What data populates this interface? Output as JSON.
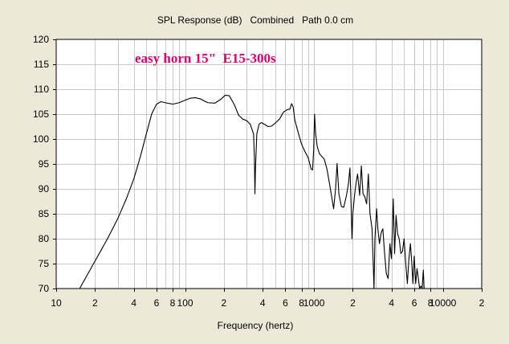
{
  "chart_data": {
    "type": "line",
    "title": "SPL Response (dB)   Combined   Path 0.0 cm",
    "xlabel": "Frequency (hertz)",
    "ylabel": "",
    "x_scale": "log",
    "xlim": [
      10,
      20000
    ],
    "ylim": [
      70,
      120
    ],
    "grid": true,
    "annotation": "easy horn 15\"  E15-300s",
    "colors": {
      "background": "#ece9d8",
      "plot_area": "#ffffff",
      "grid": "#c8c8c8",
      "line": "#000000",
      "annotation": "#e0006e"
    },
    "x_ticks": [
      {
        "value": 10,
        "label": "10"
      },
      {
        "value": 20,
        "label": "2"
      },
      {
        "value": 40,
        "label": "4"
      },
      {
        "value": 60,
        "label": "6"
      },
      {
        "value": 80,
        "label": "8"
      },
      {
        "value": 100,
        "label": "100"
      },
      {
        "value": 200,
        "label": "2"
      },
      {
        "value": 400,
        "label": "4"
      },
      {
        "value": 600,
        "label": "6"
      },
      {
        "value": 800,
        "label": "8"
      },
      {
        "value": 1000,
        "label": "1000"
      },
      {
        "value": 2000,
        "label": "2"
      },
      {
        "value": 4000,
        "label": "4"
      },
      {
        "value": 6000,
        "label": "6"
      },
      {
        "value": 8000,
        "label": "8"
      },
      {
        "value": 10000,
        "label": "10000"
      },
      {
        "value": 20000,
        "label": "2"
      }
    ],
    "y_ticks": [
      {
        "value": 70,
        "label": "70"
      },
      {
        "value": 75,
        "label": "75"
      },
      {
        "value": 80,
        "label": "80"
      },
      {
        "value": 85,
        "label": "85"
      },
      {
        "value": 90,
        "label": "90"
      },
      {
        "value": 95,
        "label": "95"
      },
      {
        "value": 100,
        "label": "100"
      },
      {
        "value": 105,
        "label": "105"
      },
      {
        "value": 110,
        "label": "110"
      },
      {
        "value": 115,
        "label": "115"
      },
      {
        "value": 120,
        "label": "120"
      }
    ],
    "series": [
      {
        "points": [
          [
            15.2,
            70
          ],
          [
            20,
            75.5
          ],
          [
            25,
            80
          ],
          [
            30,
            84
          ],
          [
            35,
            88
          ],
          [
            40,
            92
          ],
          [
            45,
            96.5
          ],
          [
            50,
            101
          ],
          [
            55,
            105
          ],
          [
            60,
            107
          ],
          [
            65,
            107.5
          ],
          [
            70,
            107.3
          ],
          [
            80,
            107
          ],
          [
            90,
            107.3
          ],
          [
            100,
            107.8
          ],
          [
            110,
            108.2
          ],
          [
            120,
            108.3
          ],
          [
            130,
            108.1
          ],
          [
            150,
            107.3
          ],
          [
            170,
            107.2
          ],
          [
            190,
            108
          ],
          [
            205,
            108.8
          ],
          [
            220,
            108.7
          ],
          [
            240,
            107
          ],
          [
            260,
            104.8
          ],
          [
            280,
            104
          ],
          [
            300,
            103.7
          ],
          [
            320,
            103
          ],
          [
            340,
            101
          ],
          [
            345,
            96
          ],
          [
            348,
            89
          ],
          [
            352,
            94.5
          ],
          [
            360,
            101
          ],
          [
            375,
            103
          ],
          [
            390,
            103.3
          ],
          [
            410,
            103
          ],
          [
            440,
            102.5
          ],
          [
            470,
            102.6
          ],
          [
            500,
            103.2
          ],
          [
            540,
            104
          ],
          [
            580,
            105.4
          ],
          [
            620,
            105.9
          ],
          [
            650,
            106
          ],
          [
            670,
            107.1
          ],
          [
            690,
            106.4
          ],
          [
            710,
            103.8
          ],
          [
            760,
            101
          ],
          [
            800,
            99
          ],
          [
            850,
            97.5
          ],
          [
            900,
            96.3
          ],
          [
            950,
            94
          ],
          [
            975,
            93.8
          ],
          [
            995,
            98
          ],
          [
            1010,
            105
          ],
          [
            1030,
            101
          ],
          [
            1060,
            98.5
          ],
          [
            1100,
            97.1
          ],
          [
            1150,
            96.5
          ],
          [
            1200,
            96
          ],
          [
            1260,
            94
          ],
          [
            1300,
            92
          ],
          [
            1350,
            89.5
          ],
          [
            1420,
            86
          ],
          [
            1470,
            90
          ],
          [
            1510,
            95.1
          ],
          [
            1560,
            89
          ],
          [
            1630,
            86.5
          ],
          [
            1700,
            86.3
          ],
          [
            1780,
            88.5
          ],
          [
            1850,
            91
          ],
          [
            1900,
            94.2
          ],
          [
            1940,
            87
          ],
          [
            1970,
            80
          ],
          [
            2000,
            85
          ],
          [
            2070,
            89
          ],
          [
            2120,
            91.2
          ],
          [
            2180,
            93
          ],
          [
            2260,
            88.7
          ],
          [
            2330,
            94.6
          ],
          [
            2400,
            89
          ],
          [
            2470,
            88.5
          ],
          [
            2560,
            87
          ],
          [
            2640,
            93
          ],
          [
            2720,
            85
          ],
          [
            2820,
            82
          ],
          [
            2880,
            75
          ],
          [
            2920,
            70
          ],
          [
            2970,
            80
          ],
          [
            3060,
            86
          ],
          [
            3130,
            82
          ],
          [
            3220,
            79
          ],
          [
            3320,
            81.2
          ],
          [
            3420,
            82
          ],
          [
            3530,
            77
          ],
          [
            3640,
            73
          ],
          [
            3760,
            72
          ],
          [
            3880,
            79
          ],
          [
            3990,
            76
          ],
          [
            4120,
            88
          ],
          [
            4220,
            77
          ],
          [
            4330,
            84.7
          ],
          [
            4450,
            81
          ],
          [
            4580,
            80
          ],
          [
            4720,
            77
          ],
          [
            4860,
            77.5
          ],
          [
            5000,
            80
          ],
          [
            5150,
            75
          ],
          [
            5300,
            71
          ],
          [
            5450,
            76
          ],
          [
            5600,
            79
          ],
          [
            5740,
            75
          ],
          [
            5850,
            71
          ],
          [
            5990,
            76.5
          ],
          [
            6150,
            71
          ],
          [
            6300,
            74
          ],
          [
            6450,
            72
          ],
          [
            6600,
            70
          ],
          [
            6750,
            70.5
          ],
          [
            6900,
            70
          ],
          [
            7050,
            73.7
          ],
          [
            7150,
            70
          ]
        ]
      }
    ]
  }
}
